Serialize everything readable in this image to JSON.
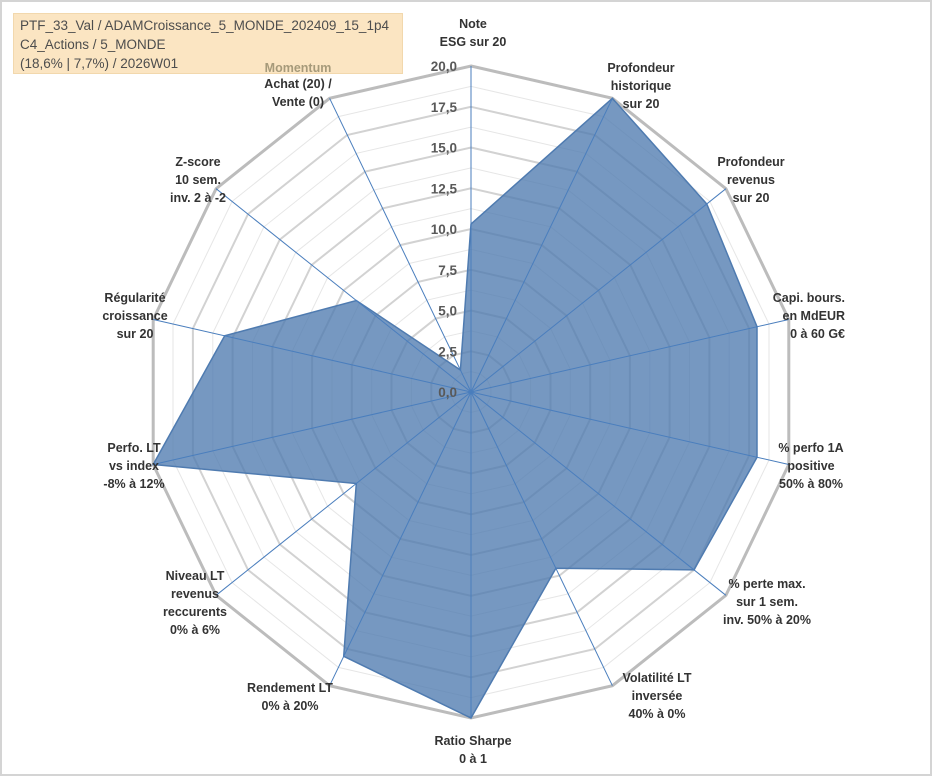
{
  "header": {
    "line1": "PTF_33_Val / ADAMCroissance_5_MONDE_202409_15_1p4",
    "line2": "C4_Actions / 5_MONDE",
    "line3": "(18,6% | 7,7%) / 2026W01",
    "momentum": "Momentum"
  },
  "chart_data": {
    "type": "radar",
    "title": "",
    "rmax": 20,
    "ticks": [
      "0,0",
      "2,5",
      "5,0",
      "7,5",
      "10,0",
      "12,5",
      "15,0",
      "17,5",
      "20,0"
    ],
    "grid": true,
    "categories": [
      [
        "Note",
        "ESG sur 20"
      ],
      [
        "Profondeur",
        "historique",
        "sur 20"
      ],
      [
        "Profondeur",
        "revenus",
        "sur 20"
      ],
      [
        "Capi. bours.",
        "en MdEUR",
        "0 à 60 G€"
      ],
      [
        "% perfo 1A",
        "positive",
        "50% à 80%"
      ],
      [
        "% perte max.",
        "sur 1 sem.",
        "inv. 50% à 20%"
      ],
      [
        "Volatilité LT",
        "inversée",
        "40% à 0%"
      ],
      [
        "Ratio Sharpe",
        "0 à 1"
      ],
      [
        "Rendement LT",
        "0% à 20%"
      ],
      [
        "Niveau LT",
        "revenus",
        "reccurents",
        "0% à 6%"
      ],
      [
        "Perfo. LT",
        "vs index",
        "-8% à 12%"
      ],
      [
        "Régularité",
        "croissance",
        "sur 20"
      ],
      [
        "Z-score",
        "10 sem.",
        "inv. 2 à -2"
      ],
      [
        "Achat (20) /",
        "Vente (0)"
      ]
    ],
    "series": [
      {
        "color": "#4f7bb0",
        "values": [
          10.3,
          20,
          18.5,
          18,
          18,
          17.5,
          12,
          20,
          18,
          9,
          20,
          15.5,
          9,
          1.5
        ]
      }
    ]
  }
}
